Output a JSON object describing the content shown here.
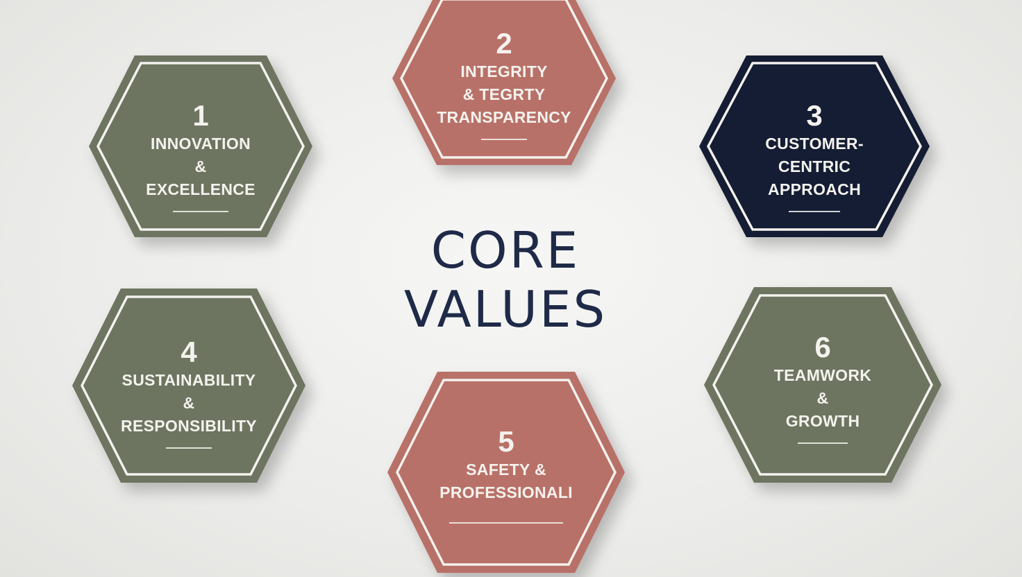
{
  "title": {
    "line1": "CORE",
    "line2": "VALUES"
  },
  "colors": {
    "green": "#6d7560",
    "rose": "#b87168",
    "navy": "#141d33",
    "title_text": "#1e2a47",
    "background": "#ececea"
  },
  "values": [
    {
      "number": "1",
      "lines": [
        "INNOVATION",
        "&",
        "EXCELLENCE"
      ],
      "color": "green"
    },
    {
      "number": "2",
      "lines": [
        "INTEGRITY",
        "& TEGRTY",
        "TRANSPARENCY"
      ],
      "color": "rose"
    },
    {
      "number": "3",
      "lines": [
        "CUSTOMER-",
        "CENTRIC",
        "APPROACH"
      ],
      "color": "navy"
    },
    {
      "number": "4",
      "lines": [
        "SUSTAINABILITY",
        "&",
        "RESPONSIBILITY"
      ],
      "color": "green"
    },
    {
      "number": "5",
      "lines": [
        "SAFETY &",
        "PROFESSIONALI"
      ],
      "color": "rose"
    },
    {
      "number": "6",
      "lines": [
        "TEAMWORK",
        "&",
        "GROWTH"
      ],
      "color": "green"
    }
  ]
}
